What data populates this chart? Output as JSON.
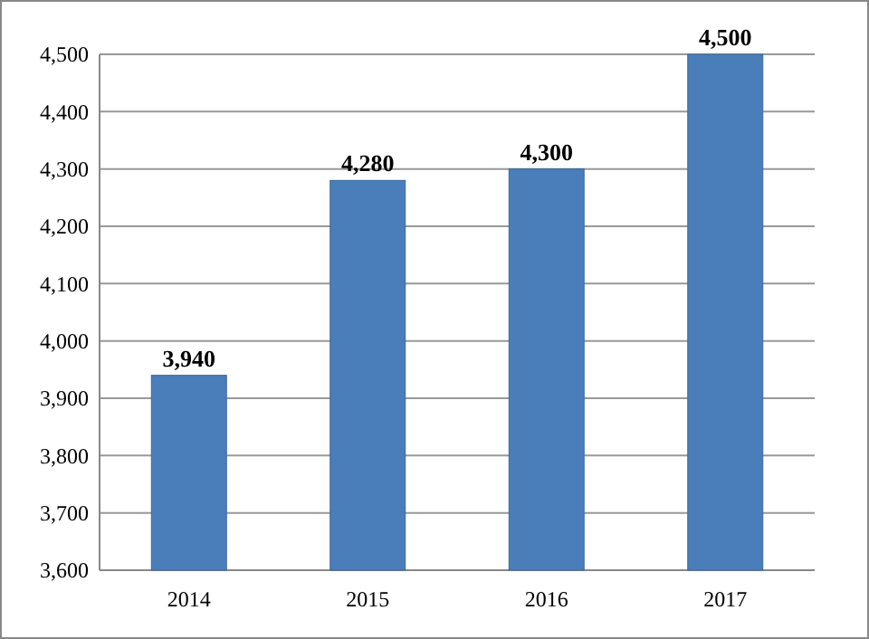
{
  "chart_data": {
    "type": "bar",
    "categories": [
      "2014",
      "2015",
      "2016",
      "2017"
    ],
    "values": [
      3940,
      4280,
      4300,
      4500
    ],
    "color": "#4a7ebb",
    "value_labels": [
      "3,940",
      "4,280",
      "4,300",
      "4,500"
    ],
    "ylim": [
      3600,
      4500
    ],
    "yticks": [
      {
        "value": 3600,
        "label": "3,600"
      },
      {
        "value": 3700,
        "label": "3,700"
      },
      {
        "value": 3800,
        "label": "3,800"
      },
      {
        "value": 3900,
        "label": "3,900"
      },
      {
        "value": 4000,
        "label": "4,000"
      },
      {
        "value": 4100,
        "label": "4,100"
      },
      {
        "value": 4200,
        "label": "4,200"
      },
      {
        "value": 4300,
        "label": "4,300"
      },
      {
        "value": 4400,
        "label": "4,400"
      },
      {
        "value": 4500,
        "label": "4,500"
      }
    ],
    "grid": true
  }
}
